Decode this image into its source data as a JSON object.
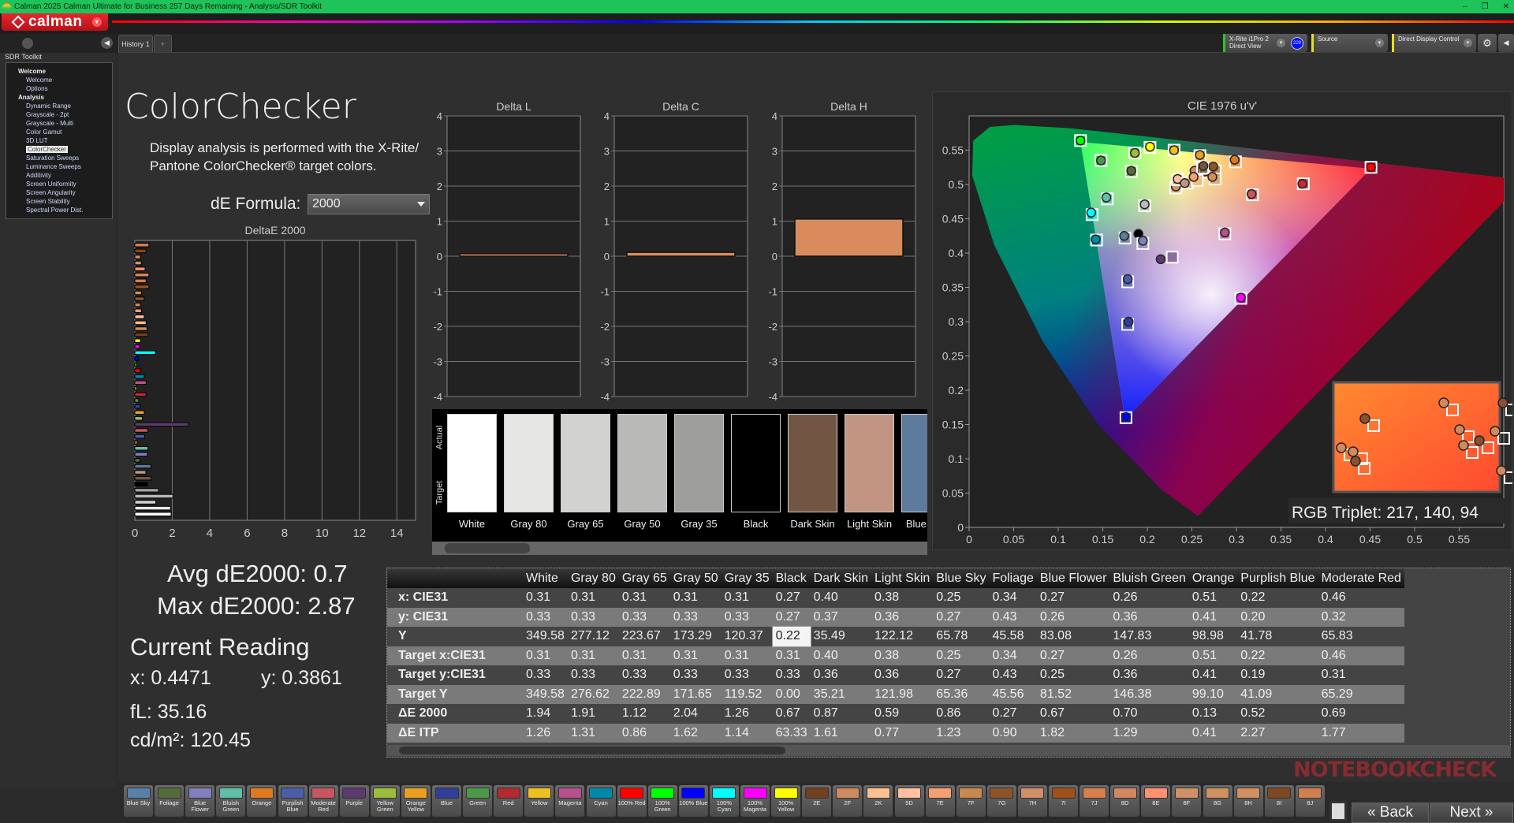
{
  "window": {
    "title": "Calman 2025 Calman Ultimate for Business 257 Days Remaining  - Analysis/SDR Toolkit",
    "controls": [
      "–",
      "❐",
      "✕"
    ]
  },
  "logo": {
    "text": "calman"
  },
  "tabs": [
    {
      "label": "History 1"
    },
    {
      "label": "+"
    }
  ],
  "toolbar": {
    "meter": {
      "line1": "X-Rite i1Pro 2",
      "line2": "Direct View",
      "badge": "229",
      "status_color": "#22cc22"
    },
    "source": {
      "label": "Source",
      "status_color": "#e8e020"
    },
    "display_control": {
      "label": "Direct Display Control",
      "status_color": "#e8e020"
    }
  },
  "sidebar": {
    "title": "SDR Toolkit",
    "items": [
      {
        "label": "Welcome",
        "header": true
      },
      {
        "label": "Welcome"
      },
      {
        "label": "Options"
      },
      {
        "label": "Analysis",
        "header": true
      },
      {
        "label": "Dynamic Range"
      },
      {
        "label": "Grayscale - 2pt"
      },
      {
        "label": "Grayscale - Multi"
      },
      {
        "label": "Color Gamut"
      },
      {
        "label": "3D LUT"
      },
      {
        "label": "ColorChecker",
        "selected": true
      },
      {
        "label": "Saturation Sweeps"
      },
      {
        "label": "Luminance Sweeps"
      },
      {
        "label": "Additivity"
      },
      {
        "label": "Screen Uniformity"
      },
      {
        "label": "Screen Angularity"
      },
      {
        "label": "Screen Stability"
      },
      {
        "label": "Spectral Power Dist."
      }
    ]
  },
  "page": {
    "title": "ColorChecker",
    "description": "Display analysis is performed with the X-Rite/ Pantone ColorChecker® target colors.",
    "de_formula_label": "dE Formula:",
    "de_formula_value": "2000"
  },
  "stats": {
    "avg": "Avg dE2000: 0.7",
    "max": "Max dE2000: 2.87",
    "current_reading_title": "Current Reading",
    "x": "x: 0.4471",
    "y": "y: 0.3861",
    "fl": "fL: 35.16",
    "cdm2": "cd/m²: 120.45"
  },
  "chart_data": [
    {
      "type": "bar",
      "orientation": "horizontal",
      "title": "DeltaE 2000",
      "xlim": [
        0,
        15
      ],
      "xticks": [
        0,
        2,
        4,
        6,
        8,
        10,
        12,
        14
      ],
      "grid": true,
      "values": [
        1.94,
        1.91,
        1.12,
        2.04,
        1.26,
        0.67,
        0.87,
        0.59,
        0.86,
        0.27,
        0.67,
        0.7,
        0.13,
        0.52,
        0.69,
        2.87,
        0.4,
        0.5,
        0.3,
        0.2,
        0.6,
        0.1,
        0.6,
        0.5,
        0.3,
        0.1,
        0.2,
        1.1,
        0.25,
        0.3,
        0.7,
        0.65,
        0.6,
        0.5,
        0.35,
        0.3,
        0.5,
        0.35,
        0.75,
        0.6,
        0.75,
        0.55,
        0.35,
        0.3,
        0.6,
        0.75
      ],
      "colors": [
        "#ffffff",
        "#e6e6e6",
        "#d2d2d2",
        "#b9b9b9",
        "#9e9e9e",
        "#000000",
        "#735544",
        "#c29582",
        "#5e7a9c",
        "#566b3c",
        "#8080bc",
        "#60c0a8",
        "#e07a20",
        "#4a5ea8",
        "#c85560",
        "#5c3a70",
        "#9cbc3c",
        "#e8a020",
        "#30409a",
        "#489a48",
        "#c02a30",
        "#ecc020",
        "#b8508e",
        "#0088a8",
        "#ff0000",
        "#00ff00",
        "#0000ff",
        "#00ffff",
        "#ff00ff",
        "#ffff00",
        "#73401f",
        "#d08a60",
        "#ffc090",
        "#ffc0a0",
        "#f4a070",
        "#c88850",
        "#8c5428",
        "#d09068",
        "#a05018",
        "#d88050",
        "#d08860",
        "#ff9070",
        "#d09068",
        "#d09060",
        "#804820",
        "#d08050"
      ]
    },
    {
      "type": "bar",
      "title": "Delta L",
      "ylim": [
        -4,
        4
      ],
      "yticks": [
        4,
        3,
        2,
        1,
        0,
        -1,
        -2,
        -3,
        -4
      ],
      "values": [
        0.07
      ],
      "color": "#d88c5e"
    },
    {
      "type": "bar",
      "title": "Delta C",
      "ylim": [
        -4,
        4
      ],
      "yticks": [
        4,
        3,
        2,
        1,
        0,
        -1,
        -2,
        -3,
        -4
      ],
      "values": [
        0.11
      ],
      "color": "#d88c5e"
    },
    {
      "type": "bar",
      "title": "Delta H",
      "ylim": [
        -4,
        4
      ],
      "yticks": [
        4,
        3,
        2,
        1,
        0,
        -1,
        -2,
        -3,
        -4
      ],
      "values": [
        1.06
      ],
      "color": "#d88c5e"
    },
    {
      "type": "scatter",
      "title": "CIE 1976 u'v'",
      "xlim": [
        0,
        0.6
      ],
      "ylim": [
        0,
        0.6
      ],
      "xticks": [
        "0",
        "0.05",
        "0.1",
        "0.15",
        "0.2",
        "0.25",
        "0.3",
        "0.35",
        "0.4",
        "0.45",
        "0.5",
        "0.55"
      ],
      "yticks": [
        "0",
        "0.05",
        "0.1",
        "0.15",
        "0.2",
        "0.25",
        "0.3",
        "0.35",
        "0.4",
        "0.45",
        "0.5",
        "0.55"
      ],
      "gamut_triangle": {
        "red": [
          0.451,
          0.523
        ],
        "green": [
          0.125,
          0.562
        ],
        "blue": [
          0.175,
          0.158
        ]
      },
      "points": [
        {
          "color": "#00ff00",
          "target": [
            0.125,
            0.564
          ],
          "actual": [
            0.125,
            0.564
          ]
        },
        {
          "color": "#489a48",
          "target": [
            0.148,
            0.535
          ],
          "actual": [
            0.148,
            0.535
          ]
        },
        {
          "color": "#9cbc3c",
          "target": [
            0.186,
            0.546
          ],
          "actual": [
            0.186,
            0.546
          ]
        },
        {
          "color": "#566b3c",
          "target": [
            0.182,
            0.519
          ],
          "actual": [
            0.182,
            0.52
          ]
        },
        {
          "color": "#ffff00",
          "target": [
            0.203,
            0.554
          ],
          "actual": [
            0.203,
            0.555
          ]
        },
        {
          "color": "#ecc020",
          "target": [
            0.23,
            0.55
          ],
          "actual": [
            0.23,
            0.55
          ]
        },
        {
          "color": "#e8a020",
          "target": [
            0.259,
            0.542
          ],
          "actual": [
            0.259,
            0.543
          ]
        },
        {
          "color": "#e07a20",
          "target": [
            0.299,
            0.533
          ],
          "actual": [
            0.298,
            0.536
          ]
        },
        {
          "color": "#ff0000",
          "target": [
            0.451,
            0.525
          ],
          "actual": [
            0.451,
            0.525
          ]
        },
        {
          "color": "#c02a30",
          "target": [
            0.375,
            0.501
          ],
          "actual": [
            0.374,
            0.501
          ]
        },
        {
          "color": "#c85560",
          "target": [
            0.318,
            0.485
          ],
          "actual": [
            0.317,
            0.486
          ]
        },
        {
          "color": "#b9b9b9",
          "target": [
            0.197,
            0.469
          ],
          "actual": [
            0.197,
            0.471
          ]
        },
        {
          "color": "#60c0a8",
          "target": [
            0.155,
            0.479
          ],
          "actual": [
            0.154,
            0.481
          ]
        },
        {
          "color": "#00ffff",
          "target": [
            0.138,
            0.456
          ],
          "actual": [
            0.137,
            0.459
          ]
        },
        {
          "color": "#0088a8",
          "target": [
            0.143,
            0.419
          ],
          "actual": [
            0.142,
            0.42
          ]
        },
        {
          "color": "#5e7a9c",
          "target": [
            0.175,
            0.422
          ],
          "actual": [
            0.174,
            0.425
          ]
        },
        {
          "color": "#000000",
          "target": null,
          "actual": [
            0.19,
            0.428
          ]
        },
        {
          "color": "#8080bc",
          "target": [
            0.195,
            0.414
          ],
          "actual": [
            0.195,
            0.418
          ]
        },
        {
          "color": "#5c3a70",
          "target": [
            0.228,
            0.394
          ],
          "actual": [
            0.215,
            0.391
          ]
        },
        {
          "color": "#b8508e",
          "target": [
            0.287,
            0.428
          ],
          "actual": [
            0.287,
            0.43
          ]
        },
        {
          "color": "#4a5ea8",
          "target": [
            0.178,
            0.358
          ],
          "actual": [
            0.178,
            0.362
          ]
        },
        {
          "color": "#30409a",
          "target": [
            0.178,
            0.296
          ],
          "actual": [
            0.179,
            0.3
          ]
        },
        {
          "color": "#ff00ff",
          "target": [
            0.305,
            0.334
          ],
          "actual": [
            0.305,
            0.335
          ]
        },
        {
          "color": "#0000ff",
          "target": [
            0.176,
            0.16
          ],
          "actual": [
            0.176,
            0.161
          ]
        },
        {
          "color": "#d09068",
          "target": [
            0.232,
            0.495
          ],
          "actual": [
            0.232,
            0.497
          ]
        },
        {
          "color": "#ffc0a0",
          "target": [
            0.234,
            0.507
          ],
          "actual": [
            0.234,
            0.508
          ]
        },
        {
          "color": "#c29582",
          "target": [
            0.245,
            0.502
          ],
          "actual": [
            0.242,
            0.502
          ]
        },
        {
          "color": "#d08a60",
          "target": [
            0.255,
            0.518
          ],
          "actual": [
            0.253,
            0.52
          ]
        },
        {
          "color": "#d88050",
          "target": [
            0.265,
            0.518
          ],
          "actual": [
            0.265,
            0.519
          ]
        },
        {
          "color": "#8c5428",
          "target": [
            0.276,
            0.52
          ],
          "actual": [
            0.274,
            0.526
          ]
        },
        {
          "color": "#735544",
          "target": [
            0.262,
            0.524
          ],
          "actual": [
            0.263,
            0.527
          ]
        },
        {
          "color": "#d09060",
          "target": [
            0.276,
            0.508
          ],
          "actual": [
            0.273,
            0.511
          ]
        },
        {
          "color": "#f4a070",
          "target": [
            0.256,
            0.506
          ],
          "actual": [
            0.252,
            0.511
          ]
        }
      ],
      "inset": {
        "background": "#ff7030"
      },
      "readout": "RGB Triplet: 217, 140, 94"
    }
  ],
  "patch_strip": {
    "actual_label": "Actual",
    "target_label": "Target",
    "patches": [
      {
        "name": "White",
        "color": "#ffffff"
      },
      {
        "name": "Gray 80",
        "color": "#e6e7e5"
      },
      {
        "name": "Gray 65",
        "color": "#d2d2d1"
      },
      {
        "name": "Gray 50",
        "color": "#b9b9b8"
      },
      {
        "name": "Gray 35",
        "color": "#9e9e9c"
      },
      {
        "name": "Black",
        "color": "#000000"
      },
      {
        "name": "Dark Skin",
        "color": "#735544"
      },
      {
        "name": "Light Skin",
        "color": "#c29582"
      },
      {
        "name": "Blue Sky",
        "color": "#5e7a9c"
      }
    ]
  },
  "table": {
    "columns": [
      "White",
      "Gray 80",
      "Gray 65",
      "Gray 50",
      "Gray 35",
      "Black",
      "Dark Skin",
      "Light Skin",
      "Blue Sky",
      "Foliage",
      "Blue Flower",
      "Bluish Green",
      "Orange",
      "Purplish Blue",
      "Moderate Red"
    ],
    "rows": [
      {
        "label": "x: CIE31",
        "values": [
          "0.31",
          "0.31",
          "0.31",
          "0.31",
          "0.31",
          "0.27",
          "0.40",
          "0.38",
          "0.25",
          "0.34",
          "0.27",
          "0.26",
          "0.51",
          "0.22",
          "0.46"
        ]
      },
      {
        "label": "y: CIE31",
        "values": [
          "0.33",
          "0.33",
          "0.33",
          "0.33",
          "0.33",
          "0.27",
          "0.37",
          "0.36",
          "0.27",
          "0.43",
          "0.26",
          "0.36",
          "0.41",
          "0.20",
          "0.32"
        ]
      },
      {
        "label": "Y",
        "values": [
          "349.58",
          "277.12",
          "223.67",
          "173.29",
          "120.37",
          "0.22",
          "35.49",
          "122.12",
          "65.78",
          "45.58",
          "83.08",
          "147.83",
          "98.98",
          "41.78",
          "65.83"
        ],
        "highlight": 5
      },
      {
        "label": "Target x:CIE31",
        "values": [
          "0.31",
          "0.31",
          "0.31",
          "0.31",
          "0.31",
          "0.31",
          "0.40",
          "0.38",
          "0.25",
          "0.34",
          "0.27",
          "0.26",
          "0.51",
          "0.22",
          "0.46"
        ]
      },
      {
        "label": "Target y:CIE31",
        "values": [
          "0.33",
          "0.33",
          "0.33",
          "0.33",
          "0.33",
          "0.33",
          "0.36",
          "0.36",
          "0.27",
          "0.43",
          "0.25",
          "0.36",
          "0.41",
          "0.19",
          "0.31"
        ]
      },
      {
        "label": "Target Y",
        "values": [
          "349.58",
          "276.62",
          "222.89",
          "171.65",
          "119.52",
          "0.00",
          "35.21",
          "121.98",
          "65.36",
          "45.56",
          "81.52",
          "146.38",
          "99.10",
          "41.09",
          "65.29"
        ]
      },
      {
        "label": "ΔE 2000",
        "values": [
          "1.94",
          "1.91",
          "1.12",
          "2.04",
          "1.26",
          "0.67",
          "0.87",
          "0.59",
          "0.86",
          "0.27",
          "0.67",
          "0.70",
          "0.13",
          "0.52",
          "0.69"
        ]
      },
      {
        "label": "ΔE ITP",
        "values": [
          "1.26",
          "1.31",
          "0.86",
          "1.62",
          "1.14",
          "63.33",
          "1.61",
          "0.77",
          "1.23",
          "0.90",
          "1.82",
          "1.29",
          "0.41",
          "2.27",
          "1.77"
        ]
      }
    ]
  },
  "patch_buttons": [
    {
      "label": "Blue Sky",
      "color": "#5a7fa8"
    },
    {
      "label": "Foliage",
      "color": "#566b3c"
    },
    {
      "label": "Blue Flower",
      "color": "#7f80bc"
    },
    {
      "label": "Bluish Green",
      "color": "#5fbfa8"
    },
    {
      "label": "Orange",
      "color": "#e07a20"
    },
    {
      "label": "Purplish Blue",
      "color": "#4a5ea8"
    },
    {
      "label": "Moderate Red",
      "color": "#c85560"
    },
    {
      "label": "Purple",
      "color": "#5c3a70"
    },
    {
      "label": "Yellow Green",
      "color": "#9cbc3c"
    },
    {
      "label": "Orange Yellow",
      "color": "#e8a020"
    },
    {
      "label": "Blue",
      "color": "#30409a"
    },
    {
      "label": "Green",
      "color": "#489a48"
    },
    {
      "label": "Red",
      "color": "#b02a30"
    },
    {
      "label": "Yellow",
      "color": "#ecc020"
    },
    {
      "label": "Magenta",
      "color": "#b8508e"
    },
    {
      "label": "Cyan",
      "color": "#0088a8"
    },
    {
      "label": "100% Red",
      "color": "#ff0000"
    },
    {
      "label": "100% Green",
      "color": "#00ff00"
    },
    {
      "label": "100% Blue",
      "color": "#0000ff"
    },
    {
      "label": "100% Cyan",
      "color": "#00ffff"
    },
    {
      "label": "100% Magenta",
      "color": "#ff00ff"
    },
    {
      "label": "100% Yellow",
      "color": "#ffff00"
    },
    {
      "label": "2E",
      "color": "#73401f"
    },
    {
      "label": "2F",
      "color": "#d08a60"
    },
    {
      "label": "2K",
      "color": "#ffc090"
    },
    {
      "label": "5D",
      "color": "#ffc0a0"
    },
    {
      "label": "7E",
      "color": "#f4a070"
    },
    {
      "label": "7F",
      "color": "#c88850"
    },
    {
      "label": "7G",
      "color": "#8c5428"
    },
    {
      "label": "7H",
      "color": "#d09068"
    },
    {
      "label": "7I",
      "color": "#a05018"
    },
    {
      "label": "7J",
      "color": "#d88050"
    },
    {
      "label": "8D",
      "color": "#d08860"
    },
    {
      "label": "8E",
      "color": "#ff9070"
    },
    {
      "label": "8F",
      "color": "#d09068"
    },
    {
      "label": "8G",
      "color": "#d09060"
    },
    {
      "label": "8H",
      "color": "#d09060"
    },
    {
      "label": "8I",
      "color": "#804820"
    },
    {
      "label": "8J",
      "color": "#d08050"
    }
  ],
  "nav": {
    "back": "Back",
    "next": "Next"
  },
  "watermark": {
    "text": "NOTEBOOKCHECK"
  }
}
